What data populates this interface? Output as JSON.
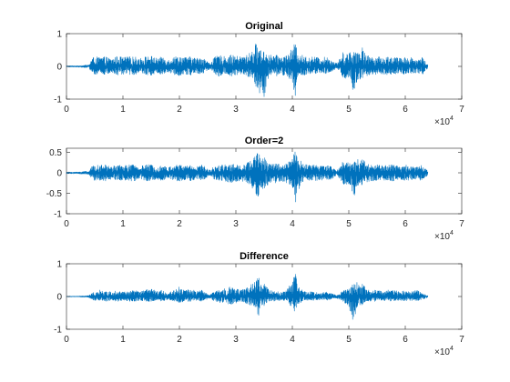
{
  "chart_data": [
    {
      "type": "line",
      "title": "Original",
      "xlabel": "",
      "ylabel": "",
      "xlim": [
        0,
        70000
      ],
      "ylim": [
        -1,
        1
      ],
      "xticks": [
        0,
        1,
        2,
        3,
        4,
        5,
        6,
        7
      ],
      "xtick_labels": [
        "0",
        "1",
        "2",
        "3",
        "4",
        "5",
        "6",
        "7"
      ],
      "yticks": [
        -1,
        0,
        1
      ],
      "ytick_labels": [
        "-1",
        "0",
        "1"
      ],
      "x_multiplier": {
        "base": "×10",
        "exponent": "4"
      },
      "grid": false,
      "color": "#0072BD",
      "series": [
        {
          "x": [
            0,
            2000,
            4000,
            4500,
            5000,
            6000,
            7000,
            8000,
            9000,
            10000,
            11000,
            12000,
            13000,
            14000,
            15000,
            16000,
            17000,
            18000,
            19000,
            20000,
            21000,
            22000,
            23000,
            24000,
            25000,
            25500,
            26000,
            27000,
            28000,
            29000,
            30000,
            31000,
            32000,
            33000,
            33500,
            34000,
            34500,
            35000,
            35500,
            36000,
            37000,
            38000,
            39000,
            40000,
            40500,
            41000,
            41500,
            42000,
            43000,
            44000,
            45000,
            46000,
            47000,
            47800,
            48500,
            49000,
            50000,
            50500,
            51000,
            51500,
            52000,
            52500,
            53000,
            54000,
            55000,
            56000,
            57000,
            58000,
            59000,
            60000,
            61000,
            62000,
            63000,
            64000
          ],
          "ymax": [
            0.02,
            0.02,
            0.05,
            0.25,
            0.3,
            0.28,
            0.3,
            0.22,
            0.32,
            0.28,
            0.3,
            0.3,
            0.25,
            0.3,
            0.32,
            0.25,
            0.3,
            0.2,
            0.3,
            0.32,
            0.28,
            0.3,
            0.25,
            0.3,
            0.15,
            0.1,
            0.25,
            0.35,
            0.3,
            0.35,
            0.32,
            0.3,
            0.35,
            0.5,
            0.7,
            0.65,
            0.45,
            0.5,
            0.4,
            0.35,
            0.35,
            0.3,
            0.35,
            0.55,
            0.75,
            0.35,
            0.4,
            0.3,
            0.3,
            0.3,
            0.25,
            0.3,
            0.2,
            0.1,
            0.25,
            0.45,
            0.4,
            0.5,
            0.45,
            0.55,
            0.5,
            0.6,
            0.35,
            0.3,
            0.3,
            0.28,
            0.3,
            0.3,
            0.25,
            0.3,
            0.28,
            0.2,
            0.3,
            0.05
          ],
          "ymin": [
            -0.02,
            -0.02,
            -0.05,
            -0.2,
            -0.25,
            -0.25,
            -0.25,
            -0.2,
            -0.28,
            -0.25,
            -0.25,
            -0.25,
            -0.22,
            -0.25,
            -0.28,
            -0.2,
            -0.25,
            -0.18,
            -0.25,
            -0.28,
            -0.25,
            -0.28,
            -0.2,
            -0.25,
            -0.12,
            -0.08,
            -0.2,
            -0.3,
            -0.25,
            -0.3,
            -0.28,
            -0.25,
            -0.3,
            -0.4,
            -0.6,
            -0.9,
            -0.7,
            -0.95,
            -0.5,
            -0.3,
            -0.3,
            -0.28,
            -0.3,
            -0.45,
            -0.95,
            -0.5,
            -0.3,
            -0.28,
            -0.25,
            -0.28,
            -0.2,
            -0.25,
            -0.18,
            -0.05,
            -0.2,
            -0.35,
            -0.4,
            -0.65,
            -0.9,
            -0.45,
            -0.5,
            -0.4,
            -0.3,
            -0.25,
            -0.25,
            -0.25,
            -0.25,
            -0.25,
            -0.2,
            -0.25,
            -0.22,
            -0.2,
            -0.25,
            -0.05
          ]
        }
      ]
    },
    {
      "type": "line",
      "title": "Order=2",
      "xlabel": "",
      "ylabel": "",
      "xlim": [
        0,
        70000
      ],
      "ylim": [
        -1,
        0.6
      ],
      "xticks": [
        0,
        1,
        2,
        3,
        4,
        5,
        6,
        7
      ],
      "xtick_labels": [
        "0",
        "1",
        "2",
        "3",
        "4",
        "5",
        "6",
        "7"
      ],
      "yticks": [
        -1,
        -0.5,
        0,
        0.5
      ],
      "ytick_labels": [
        "-1",
        "-0.5",
        "0",
        "0.5"
      ],
      "x_multiplier": {
        "base": "×10",
        "exponent": "4"
      },
      "grid": false,
      "color": "#0072BD",
      "series": [
        {
          "x": [
            0,
            2000,
            4000,
            4500,
            5000,
            6000,
            7000,
            8000,
            9000,
            10000,
            11000,
            12000,
            13000,
            14000,
            15000,
            16000,
            17000,
            18000,
            19000,
            20000,
            21000,
            22000,
            23000,
            24000,
            25000,
            25500,
            26000,
            27000,
            28000,
            29000,
            30000,
            31000,
            32000,
            33000,
            33500,
            34000,
            34500,
            35000,
            35500,
            36000,
            37000,
            38000,
            39000,
            40000,
            40500,
            41000,
            41500,
            42000,
            43000,
            44000,
            45000,
            46000,
            47000,
            47800,
            48500,
            49000,
            50000,
            50500,
            51000,
            51500,
            52000,
            52500,
            53000,
            54000,
            55000,
            56000,
            57000,
            58000,
            59000,
            60000,
            61000,
            62000,
            63000,
            64000
          ],
          "ymax": [
            0.02,
            0.02,
            0.05,
            0.15,
            0.2,
            0.18,
            0.2,
            0.15,
            0.2,
            0.18,
            0.2,
            0.2,
            0.15,
            0.2,
            0.2,
            0.15,
            0.2,
            0.12,
            0.2,
            0.2,
            0.18,
            0.2,
            0.15,
            0.2,
            0.1,
            0.06,
            0.15,
            0.2,
            0.2,
            0.22,
            0.2,
            0.2,
            0.25,
            0.35,
            0.45,
            0.5,
            0.35,
            0.4,
            0.3,
            0.25,
            0.25,
            0.2,
            0.25,
            0.35,
            0.55,
            0.3,
            0.3,
            0.2,
            0.2,
            0.2,
            0.18,
            0.2,
            0.15,
            0.06,
            0.15,
            0.3,
            0.25,
            0.3,
            0.3,
            0.35,
            0.3,
            0.35,
            0.25,
            0.2,
            0.2,
            0.18,
            0.2,
            0.2,
            0.15,
            0.2,
            0.18,
            0.15,
            0.2,
            0.05
          ],
          "ymin": [
            -0.02,
            -0.02,
            -0.05,
            -0.15,
            -0.2,
            -0.18,
            -0.2,
            -0.15,
            -0.2,
            -0.18,
            -0.2,
            -0.2,
            -0.15,
            -0.2,
            -0.2,
            -0.15,
            -0.2,
            -0.12,
            -0.2,
            -0.2,
            -0.18,
            -0.2,
            -0.15,
            -0.2,
            -0.1,
            -0.06,
            -0.15,
            -0.2,
            -0.2,
            -0.25,
            -0.22,
            -0.2,
            -0.25,
            -0.4,
            -0.55,
            -0.65,
            -0.5,
            -0.4,
            -0.35,
            -0.25,
            -0.25,
            -0.2,
            -0.25,
            -0.4,
            -0.85,
            -0.5,
            -0.3,
            -0.2,
            -0.2,
            -0.2,
            -0.18,
            -0.2,
            -0.15,
            -0.06,
            -0.15,
            -0.3,
            -0.3,
            -0.45,
            -0.55,
            -0.35,
            -0.3,
            -0.3,
            -0.25,
            -0.2,
            -0.2,
            -0.18,
            -0.2,
            -0.2,
            -0.15,
            -0.2,
            -0.18,
            -0.15,
            -0.2,
            -0.05
          ]
        }
      ]
    },
    {
      "type": "line",
      "title": "Difference",
      "xlabel": "",
      "ylabel": "",
      "xlim": [
        0,
        70000
      ],
      "ylim": [
        -1,
        1
      ],
      "xticks": [
        0,
        1,
        2,
        3,
        4,
        5,
        6,
        7
      ],
      "xtick_labels": [
        "0",
        "1",
        "2",
        "3",
        "4",
        "5",
        "6",
        "7"
      ],
      "yticks": [
        -1,
        0,
        1
      ],
      "ytick_labels": [
        "-1",
        "0",
        "1"
      ],
      "x_multiplier": {
        "base": "×10",
        "exponent": "4"
      },
      "grid": false,
      "color": "#0072BD",
      "series": [
        {
          "x": [
            0,
            2000,
            4000,
            4500,
            5000,
            6000,
            7000,
            8000,
            9000,
            10000,
            11000,
            12000,
            13000,
            14000,
            15000,
            16000,
            17000,
            18000,
            19000,
            20000,
            21000,
            22000,
            23000,
            24000,
            25000,
            25500,
            26000,
            27000,
            28000,
            29000,
            30000,
            31000,
            32000,
            33000,
            33500,
            34000,
            34500,
            35000,
            35500,
            36000,
            37000,
            38000,
            39000,
            40000,
            40500,
            41000,
            41500,
            42000,
            43000,
            44000,
            45000,
            46000,
            47000,
            47800,
            48500,
            49000,
            50000,
            50500,
            51000,
            51500,
            52000,
            52500,
            53000,
            54000,
            55000,
            56000,
            57000,
            58000,
            59000,
            60000,
            61000,
            62000,
            63000,
            64000
          ],
          "ymax": [
            0.01,
            0.01,
            0.03,
            0.1,
            0.15,
            0.2,
            0.15,
            0.15,
            0.2,
            0.15,
            0.15,
            0.2,
            0.15,
            0.2,
            0.25,
            0.15,
            0.2,
            0.1,
            0.2,
            0.3,
            0.2,
            0.25,
            0.15,
            0.2,
            0.08,
            0.05,
            0.15,
            0.2,
            0.25,
            0.3,
            0.25,
            0.2,
            0.3,
            0.4,
            0.55,
            0.6,
            0.35,
            0.4,
            0.3,
            0.2,
            0.15,
            0.15,
            0.2,
            0.5,
            0.8,
            0.3,
            0.25,
            0.15,
            0.15,
            0.15,
            0.1,
            0.15,
            0.1,
            0.05,
            0.1,
            0.2,
            0.25,
            0.35,
            0.4,
            0.6,
            0.3,
            0.45,
            0.2,
            0.2,
            0.2,
            0.15,
            0.2,
            0.2,
            0.15,
            0.2,
            0.15,
            0.2,
            0.1,
            0.03
          ],
          "ymin": [
            -0.01,
            -0.01,
            -0.03,
            -0.1,
            -0.15,
            -0.12,
            -0.15,
            -0.12,
            -0.15,
            -0.12,
            -0.15,
            -0.15,
            -0.12,
            -0.15,
            -0.15,
            -0.12,
            -0.15,
            -0.1,
            -0.15,
            -0.2,
            -0.15,
            -0.15,
            -0.12,
            -0.15,
            -0.08,
            -0.05,
            -0.12,
            -0.2,
            -0.2,
            -0.25,
            -0.2,
            -0.15,
            -0.25,
            -0.3,
            -0.35,
            -0.6,
            -0.25,
            -0.3,
            -0.2,
            -0.15,
            -0.15,
            -0.12,
            -0.15,
            -0.35,
            -0.5,
            -0.25,
            -0.2,
            -0.12,
            -0.12,
            -0.12,
            -0.1,
            -0.12,
            -0.08,
            -0.05,
            -0.1,
            -0.2,
            -0.3,
            -0.7,
            -0.8,
            -0.35,
            -0.3,
            -0.25,
            -0.15,
            -0.15,
            -0.15,
            -0.12,
            -0.15,
            -0.15,
            -0.12,
            -0.15,
            -0.12,
            -0.15,
            -0.1,
            -0.03
          ]
        }
      ]
    }
  ]
}
